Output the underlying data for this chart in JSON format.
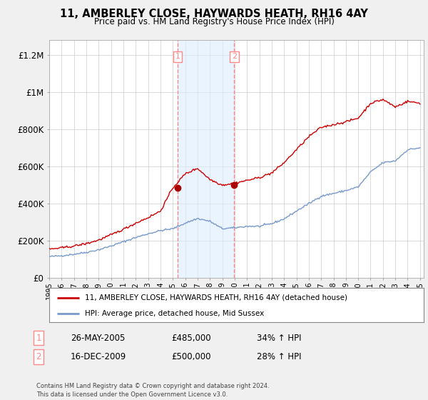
{
  "title": "11, AMBERLEY CLOSE, HAYWARDS HEATH, RH16 4AY",
  "subtitle": "Price paid vs. HM Land Registry's House Price Index (HPI)",
  "background_color": "#f0f0f0",
  "plot_bg_color": "#ffffff",
  "ylabel_ticks": [
    "£0",
    "£200K",
    "£400K",
    "£600K",
    "£800K",
    "£1M",
    "£1.2M"
  ],
  "ytick_values": [
    0,
    200000,
    400000,
    600000,
    800000,
    1000000,
    1200000
  ],
  "ylim": [
    0,
    1280000
  ],
  "x_start_year": 1995,
  "x_end_year": 2025,
  "sale1_x": 2005.4,
  "sale1_price": 485000,
  "sale2_x": 2009.96,
  "sale2_price": 500000,
  "shade_color": "#ddeeff",
  "shade_alpha": 0.6,
  "vline_color": "#ff8888",
  "vline_style": "--",
  "marker_color": "#aa0000",
  "red_line_color": "#cc0000",
  "blue_line_color": "#7799cc",
  "legend_red_label": "11, AMBERLEY CLOSE, HAYWARDS HEATH, RH16 4AY (detached house)",
  "legend_blue_label": "HPI: Average price, detached house, Mid Sussex",
  "table_row1_num": "1",
  "table_row1_date": "26-MAY-2005",
  "table_row1_price": "£485,000",
  "table_row1_hpi": "34% ↑ HPI",
  "table_row2_num": "2",
  "table_row2_date": "16-DEC-2009",
  "table_row2_price": "£500,000",
  "table_row2_hpi": "28% ↑ HPI",
  "footer": "Contains HM Land Registry data © Crown copyright and database right 2024.\nThis data is licensed under the Open Government Licence v3.0.",
  "hpi_key_years": [
    1995,
    1996,
    1997,
    1998,
    1999,
    2000,
    2001,
    2002,
    2003,
    2004,
    2005,
    2006,
    2007,
    2008,
    2009,
    2010,
    2011,
    2012,
    2013,
    2014,
    2015,
    2016,
    2017,
    2018,
    2019,
    2020,
    2021,
    2022,
    2023,
    2024,
    2025
  ],
  "hpi_key_vals": [
    115000,
    120000,
    128000,
    138000,
    152000,
    172000,
    195000,
    218000,
    238000,
    255000,
    265000,
    295000,
    320000,
    305000,
    265000,
    270000,
    278000,
    278000,
    292000,
    318000,
    360000,
    400000,
    440000,
    455000,
    470000,
    490000,
    570000,
    620000,
    630000,
    690000,
    700000
  ],
  "red_key_years": [
    1995,
    1996,
    1997,
    1998,
    1999,
    2000,
    2001,
    2002,
    2003,
    2004,
    2005,
    2006,
    2007,
    2008,
    2009,
    2010,
    2011,
    2012,
    2013,
    2014,
    2015,
    2016,
    2017,
    2018,
    2019,
    2020,
    2021,
    2022,
    2023,
    2024,
    2025
  ],
  "red_key_vals": [
    155000,
    162000,
    172000,
    185000,
    204000,
    232000,
    262000,
    295000,
    325000,
    360000,
    485000,
    560000,
    590000,
    530000,
    500000,
    510000,
    525000,
    540000,
    565000,
    620000,
    690000,
    760000,
    810000,
    825000,
    840000,
    860000,
    940000,
    960000,
    920000,
    950000,
    940000
  ]
}
